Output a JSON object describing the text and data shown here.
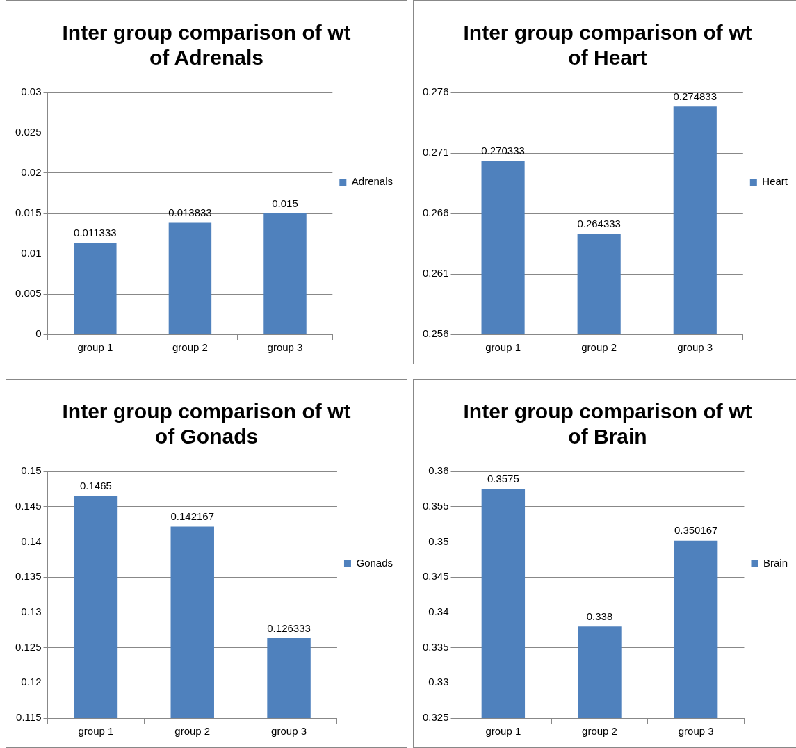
{
  "chart_data": [
    {
      "type": "bar",
      "title": "Inter group comparison of wt of Adrenals",
      "categories": [
        "group 1",
        "group 2",
        "group 3"
      ],
      "series": [
        {
          "name": "Adrenals",
          "color": "#4f81bd",
          "values": [
            0.011333,
            0.013833,
            0.015
          ]
        }
      ],
      "ylim": [
        0,
        0.03
      ],
      "yticks": [
        0,
        0.005,
        0.01,
        0.015,
        0.02,
        0.025,
        0.03
      ],
      "grid": "y",
      "legend": "right",
      "data_labels": true
    },
    {
      "type": "bar",
      "title": "Inter group comparison of wt of Heart",
      "categories": [
        "group 1",
        "group 2",
        "group 3"
      ],
      "series": [
        {
          "name": "Heart",
          "color": "#4f81bd",
          "values": [
            0.270333,
            0.264333,
            0.274833
          ]
        }
      ],
      "ylim": [
        0.256,
        0.276
      ],
      "yticks": [
        0.256,
        0.261,
        0.266,
        0.271,
        0.276
      ],
      "grid": "y",
      "legend": "right",
      "data_labels": true
    },
    {
      "type": "bar",
      "title": "Inter group comparison of wt of Gonads",
      "categories": [
        "group 1",
        "group 2",
        "group 3"
      ],
      "series": [
        {
          "name": "Gonads",
          "color": "#4f81bd",
          "values": [
            0.1465,
            0.142167,
            0.126333
          ]
        }
      ],
      "ylim": [
        0.115,
        0.15
      ],
      "yticks": [
        0.115,
        0.12,
        0.125,
        0.13,
        0.135,
        0.14,
        0.145,
        0.15
      ],
      "grid": "y",
      "legend": "right",
      "data_labels": true
    },
    {
      "type": "bar",
      "title": "Inter group comparison of wt of Brain",
      "categories": [
        "group 1",
        "group 2",
        "group 3"
      ],
      "series": [
        {
          "name": "Brain",
          "color": "#4f81bd",
          "values": [
            0.3575,
            0.338,
            0.350167
          ]
        }
      ],
      "ylim": [
        0.325,
        0.36
      ],
      "yticks": [
        0.325,
        0.33,
        0.335,
        0.34,
        0.345,
        0.35,
        0.355,
        0.36
      ],
      "grid": "y",
      "legend": "right",
      "data_labels": true
    }
  ]
}
